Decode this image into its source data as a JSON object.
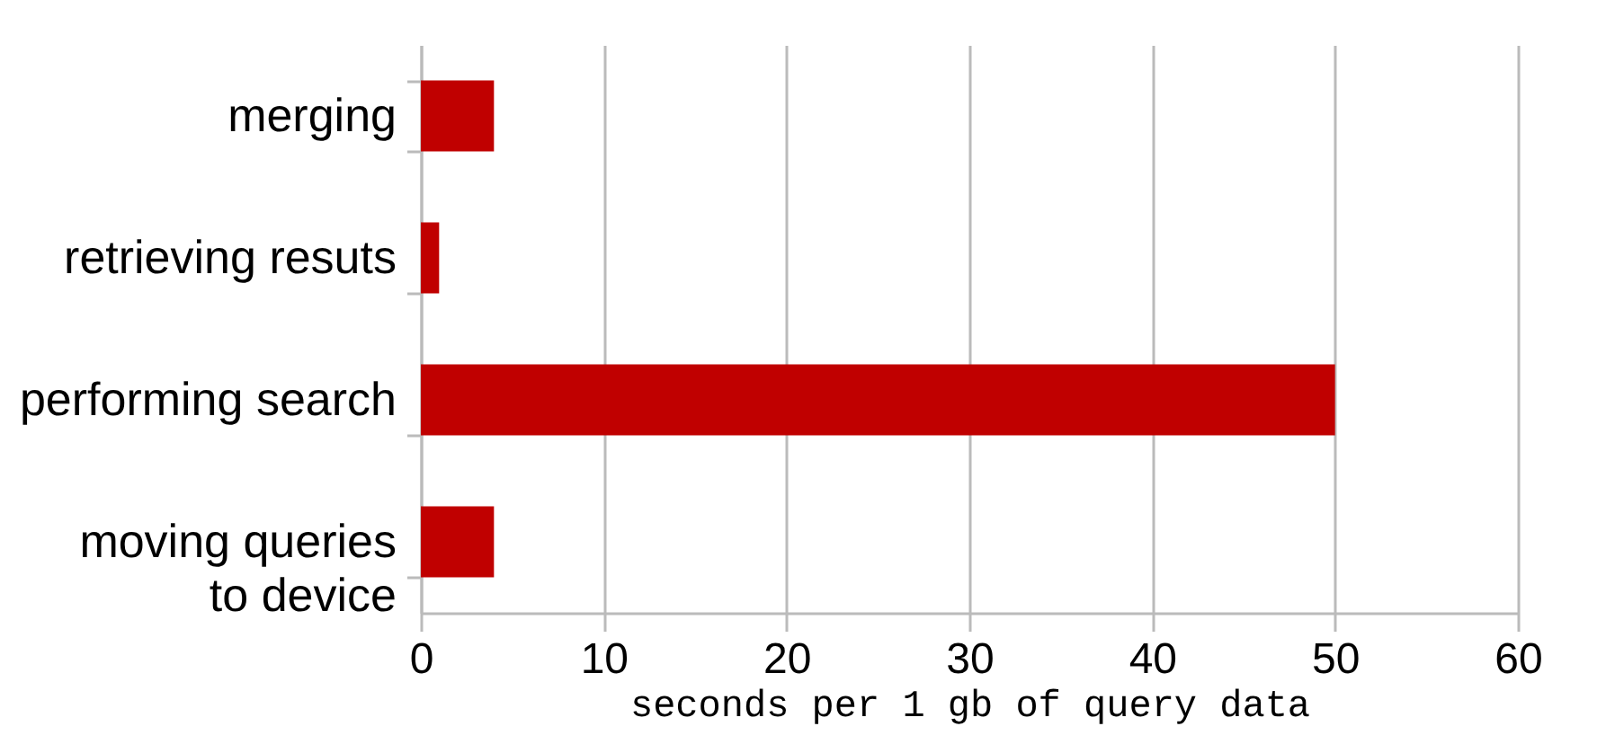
{
  "chart_data": {
    "type": "bar",
    "orientation": "horizontal",
    "categories": [
      "merging",
      "retrieving resuts",
      "performing search",
      "moving queries to device"
    ],
    "values": [
      4,
      1,
      50,
      4
    ],
    "color": "#c00000",
    "xlabel": "seconds per 1 gb of query data",
    "xlim": [
      0,
      60
    ],
    "xticks": [
      0,
      10,
      20,
      30,
      40,
      50,
      60
    ],
    "grid": "x"
  }
}
